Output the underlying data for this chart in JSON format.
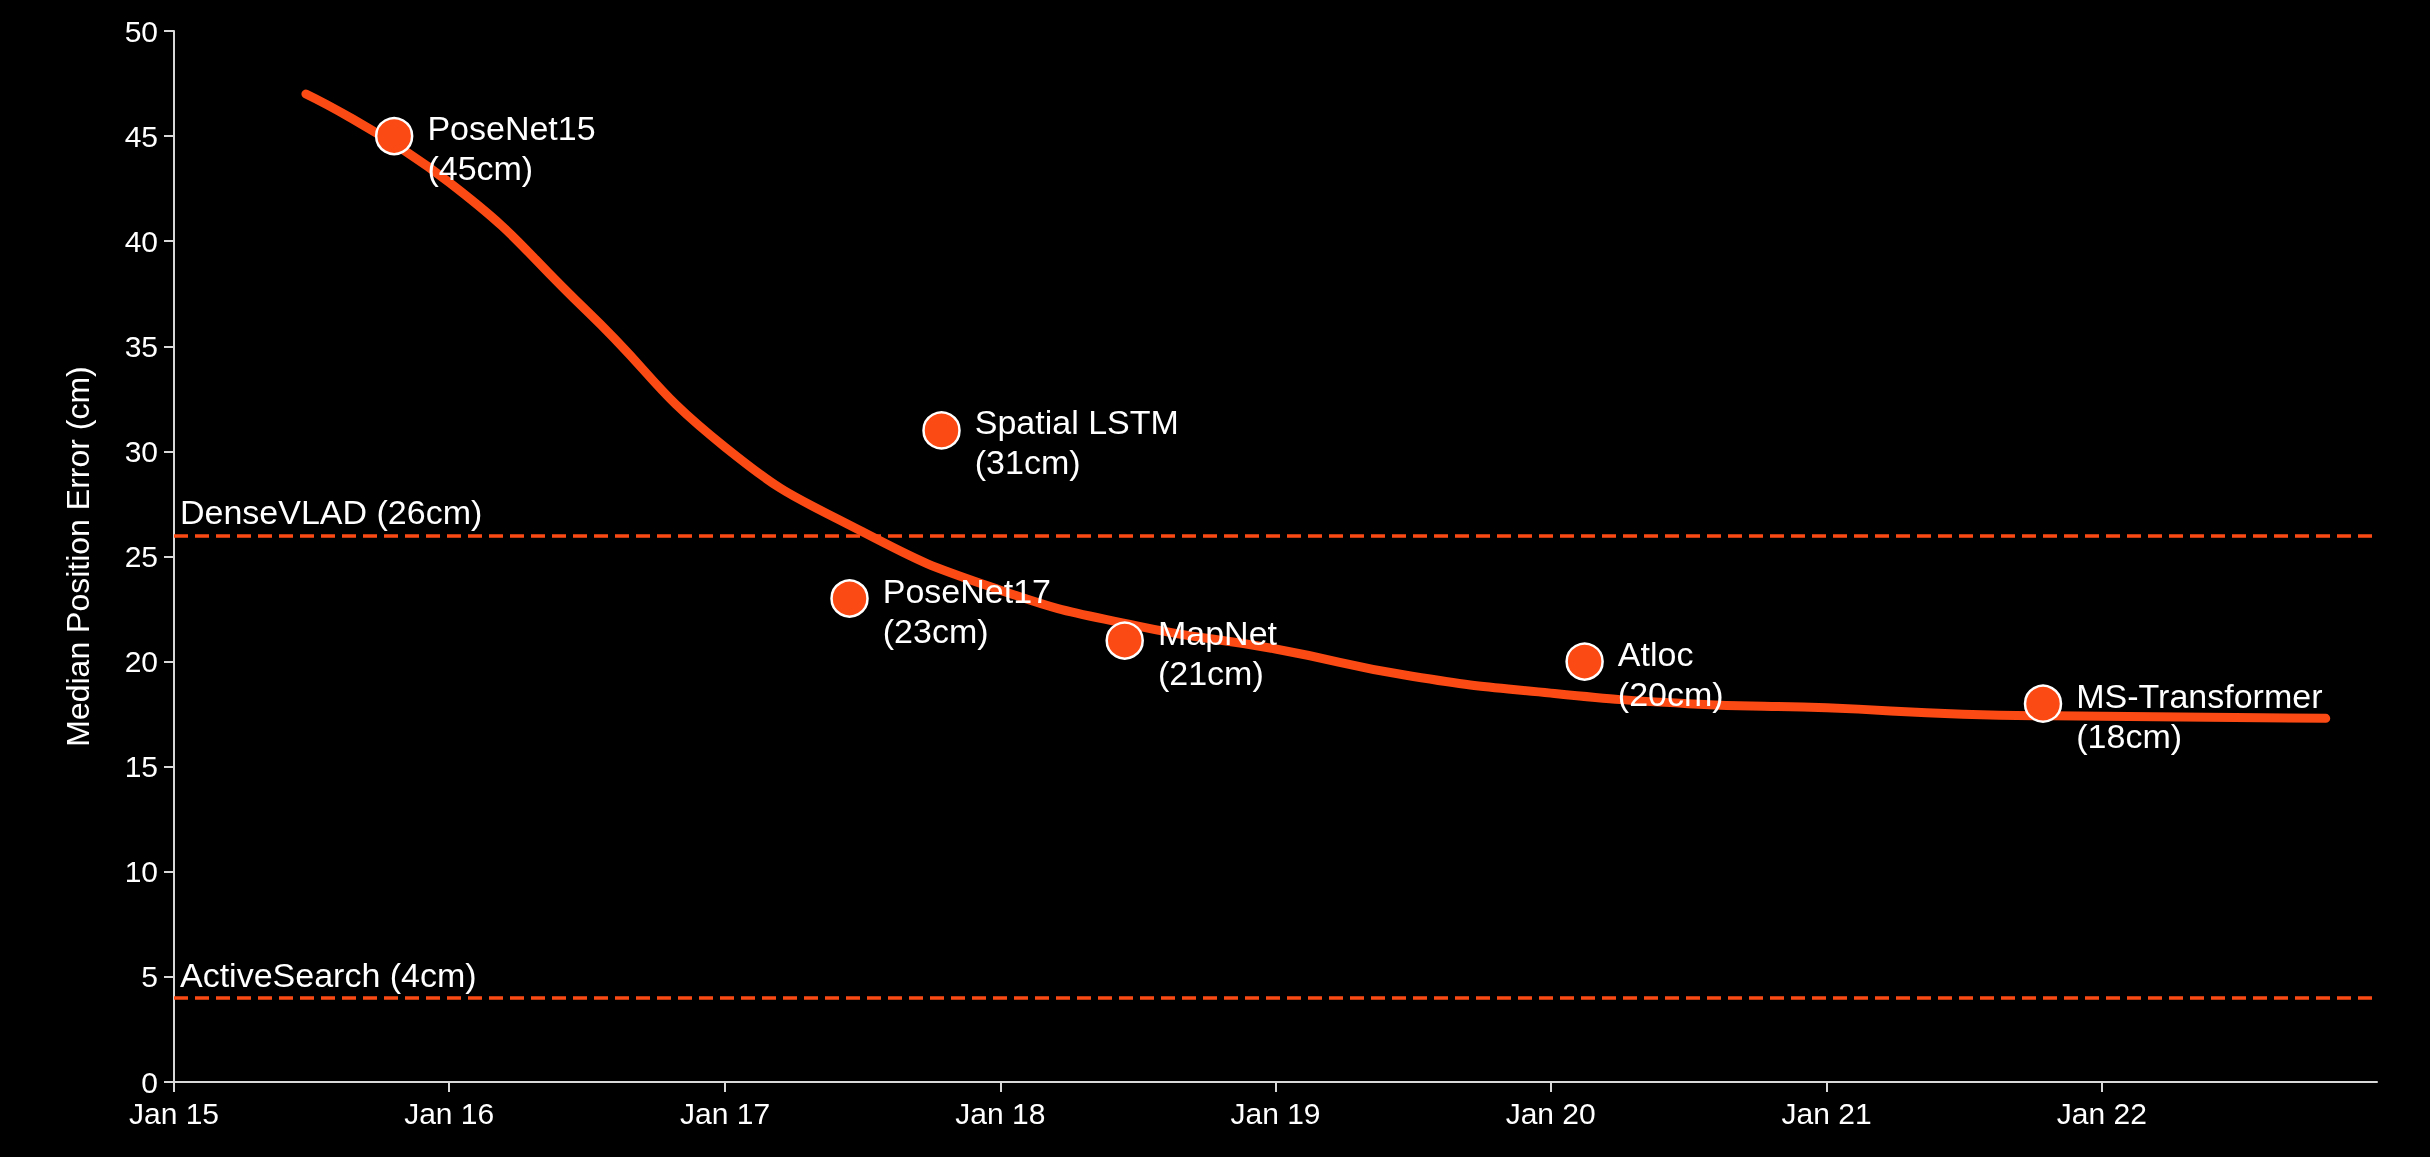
{
  "chart_data": {
    "type": "scatter",
    "ylabel": "Median Position Error (cm)",
    "xlim": [
      "2015-01",
      "2023-01"
    ],
    "xticks": [
      {
        "value": "2015-01",
        "label": "Jan 15"
      },
      {
        "value": "2016-01",
        "label": "Jan 16"
      },
      {
        "value": "2017-01",
        "label": "Jan 17"
      },
      {
        "value": "2018-01",
        "label": "Jan 18"
      },
      {
        "value": "2019-01",
        "label": "Jan 19"
      },
      {
        "value": "2020-01",
        "label": "Jan 20"
      },
      {
        "value": "2021-01",
        "label": "Jan 21"
      },
      {
        "value": "2022-01",
        "label": "Jan 22"
      }
    ],
    "ylim": [
      0,
      50
    ],
    "yticks": [
      0,
      5,
      10,
      15,
      20,
      25,
      30,
      35,
      40,
      45,
      50
    ],
    "grid": false,
    "marker": "circle",
    "series": [
      {
        "type": "line",
        "color": "#fc4a14",
        "marker": "none",
        "line_style": "solid",
        "x": [
          "2015-06-25",
          "2016-01",
          "2016-07",
          "2017-01",
          "2017-07",
          "2018-01",
          "2018-07",
          "2019-01",
          "2019-07",
          "2020-01",
          "2020-07",
          "2021-01",
          "2021-07",
          "2022-01",
          "2022-10-25"
        ],
        "values": [
          47,
          42.8,
          36.7,
          30.2,
          26.2,
          23.4,
          21.7,
          20.6,
          19.3,
          18.5,
          18.0,
          17.8,
          17.5,
          17.4,
          17.3
        ]
      },
      {
        "color": "#fc4a14",
        "x": [
          "2015-10-20",
          "2017-10-15",
          "2017-06-15",
          "2018-06-15",
          "2020-02-15",
          "2021-10-15"
        ],
        "values": [
          45,
          31,
          23,
          21,
          20,
          18
        ],
        "value_labels": [
          "PoseNet15\n(45cm)",
          "Spatial LSTM\n(31cm)",
          "PoseNet17\n(23cm)",
          "MapNet\n(21cm)",
          "Atloc\n(20cm)",
          "MS-Transformer\n(18cm)"
        ]
      }
    ],
    "ref_lines": [
      {
        "axis": "y",
        "value": 26,
        "label": "DenseVLAD (26cm)",
        "color": "#fc4a14",
        "line_style": "dashed"
      },
      {
        "axis": "y",
        "value": 4,
        "label": "ActiveSearch (4cm)",
        "color": "#fc4a14",
        "line_style": "dashed"
      }
    ]
  }
}
